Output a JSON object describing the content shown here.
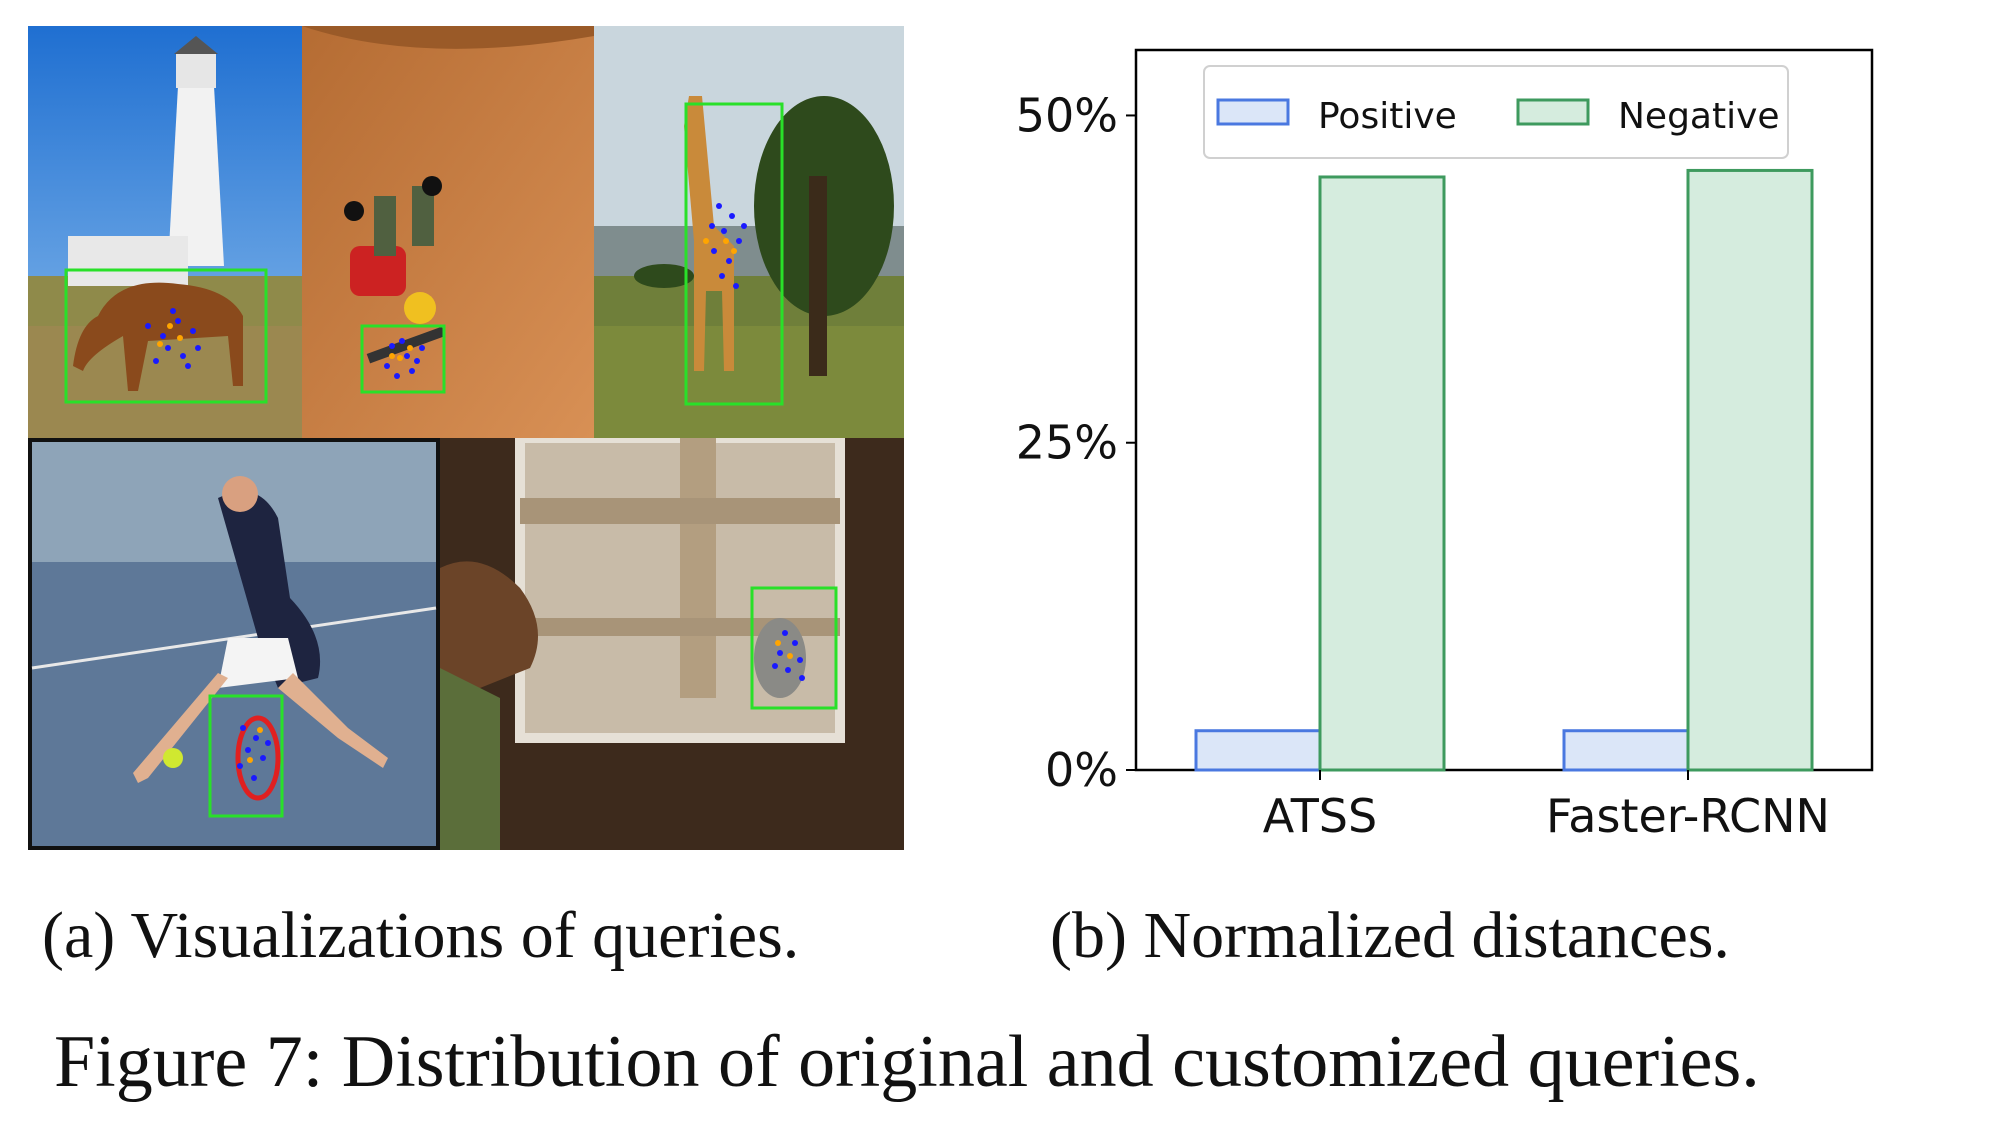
{
  "panel_a": {
    "caption": "(a) Visualizations of queries.",
    "photos": [
      {
        "subject": "horse"
      },
      {
        "subject": "skateboarder"
      },
      {
        "subject": "giraffe"
      },
      {
        "subject": "tennis-racket"
      },
      {
        "subject": "cat"
      }
    ],
    "colors": {
      "box": "#29e029",
      "query_positive": "#1a1aff",
      "query_negative": "#ffa500"
    }
  },
  "panel_b": {
    "caption": "(b) Normalized distances."
  },
  "figure_caption": "Figure 7: Distribution of original and customized queries.",
  "chart_data": {
    "type": "bar",
    "categories": [
      "ATSS",
      "Faster-RCNN"
    ],
    "series": [
      {
        "name": "Positive",
        "values": [
          3,
          3
        ],
        "color": "#dbe6f8",
        "edge": "#4a78e0"
      },
      {
        "name": "Negative",
        "values": [
          45.3,
          45.8
        ],
        "color": "#d5ecde",
        "edge": "#3e9a5e"
      }
    ],
    "ylim": [
      0,
      55
    ],
    "yticks": [
      0,
      25,
      50
    ],
    "ytick_labels": [
      "0%",
      "25%",
      "50%"
    ],
    "legend": "top-center",
    "grid": false,
    "title": "",
    "xlabel": "",
    "ylabel": ""
  }
}
